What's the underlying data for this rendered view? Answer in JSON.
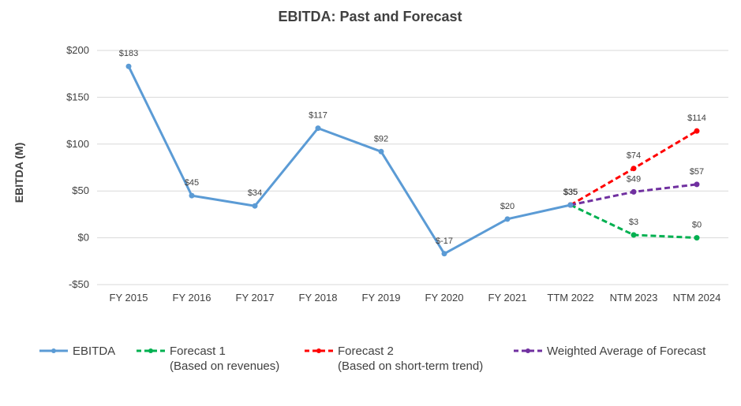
{
  "chart_data": {
    "type": "line",
    "title": "EBITDA: Past and Forecast",
    "ylabel": "EBITDA (M)",
    "xlabel": "",
    "categories": [
      "FY 2015",
      "FY 2016",
      "FY 2017",
      "FY 2018",
      "FY 2019",
      "FY 2020",
      "FY 2021",
      "TTM 2022",
      "NTM 2023",
      "NTM 2024"
    ],
    "ylim": [
      -50,
      200
    ],
    "yticks": [
      -50,
      0,
      50,
      100,
      150,
      200
    ],
    "ytick_labels": [
      "-$50",
      "$0",
      "$50",
      "$100",
      "$150",
      "$200"
    ],
    "grid": true,
    "legend_position": "bottom",
    "series": [
      {
        "name": "EBITDA",
        "color": "#5B9BD5",
        "style": "solid",
        "values": [
          183,
          45,
          34,
          117,
          92,
          -17,
          20,
          35,
          null,
          null
        ],
        "labels": [
          "$183",
          "$45",
          "$34",
          "$117",
          "$92",
          "$-17",
          "$20",
          "$35",
          null,
          null
        ]
      },
      {
        "name": "Forecast 1",
        "subtitle": "(Based on revenues)",
        "color": "#00B050",
        "style": "dashed",
        "values": [
          null,
          null,
          null,
          null,
          null,
          null,
          null,
          35,
          3,
          0
        ],
        "labels": [
          null,
          null,
          null,
          null,
          null,
          null,
          null,
          "$35",
          "$3",
          "$0"
        ]
      },
      {
        "name": "Forecast 2",
        "subtitle": "(Based on short-term trend)",
        "color": "#FF0000",
        "style": "dashed",
        "values": [
          null,
          null,
          null,
          null,
          null,
          null,
          null,
          35,
          74,
          114
        ],
        "labels": [
          null,
          null,
          null,
          null,
          null,
          null,
          null,
          "$35",
          "$74",
          "$114"
        ]
      },
      {
        "name": "Weighted Average of Forecast",
        "color": "#7030A0",
        "style": "dashed",
        "values": [
          null,
          null,
          null,
          null,
          null,
          null,
          null,
          35,
          49,
          57
        ],
        "labels": [
          null,
          null,
          null,
          null,
          null,
          null,
          null,
          "$35",
          "$49",
          "$57"
        ]
      }
    ]
  }
}
